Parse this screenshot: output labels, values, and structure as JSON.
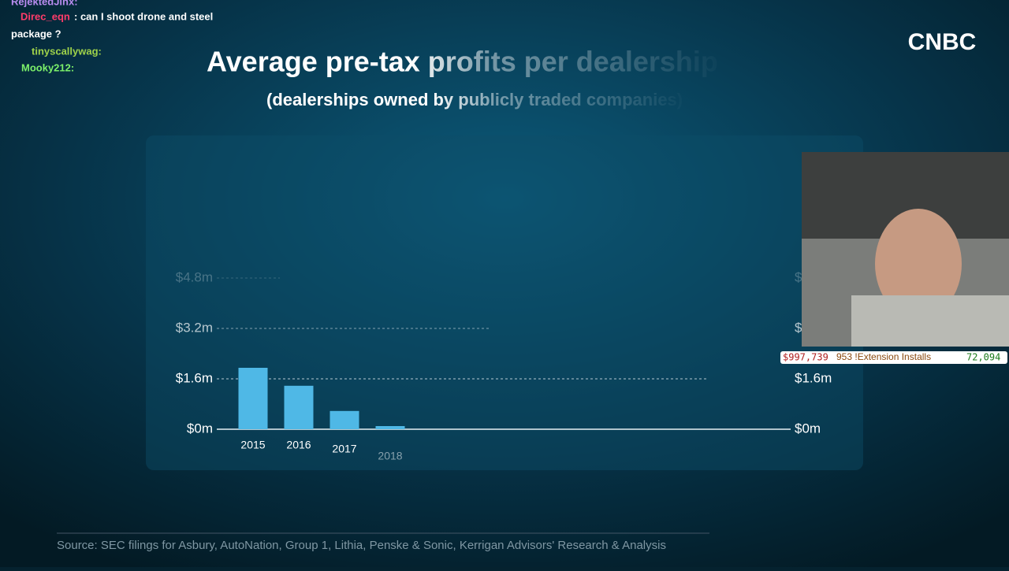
{
  "chart_data": {
    "type": "bar",
    "title": "Average pre-tax profits per dealership",
    "subtitle": "(dealerships owned by publicly traded companies)",
    "categories": [
      "2015",
      "2016",
      "2017",
      "2018"
    ],
    "values": [
      1.95,
      1.38,
      0.58,
      0.1
    ],
    "color": "#4fb8e6",
    "ylim": [
      0,
      4.8
    ],
    "yticks": [
      {
        "value": 0,
        "label": "$0m"
      },
      {
        "value": 1.6,
        "label": "$1.6m"
      },
      {
        "value": 3.2,
        "label": "$3.2m"
      },
      {
        "value": 4.8,
        "label": "$4.8m"
      }
    ],
    "grid": true,
    "source": "Source: SEC filings for Asbury, AutoNation, Group 1, Lithia, Penske & Sonic, Kerrigan Advisors' Research & Analysis"
  },
  "overlay": {
    "logo": "CNBC",
    "chat": [
      {
        "user": "RejektedJinx:"
      },
      {
        "user": "Direc_eqn",
        "message": ": can I shoot drone and steel",
        "message2": "package ?"
      },
      {
        "user": "tinyscallywag:"
      },
      {
        "user": "Mooky212:"
      }
    ],
    "stats": [
      "$997,739",
      "953 !Extension Installs",
      "72,094"
    ]
  }
}
